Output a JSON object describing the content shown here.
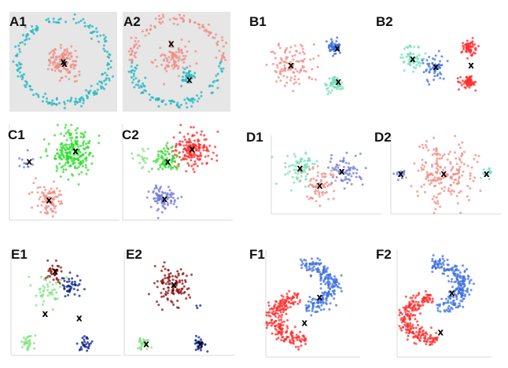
{
  "figure": {
    "colors": {
      "salmon": "#f08a80",
      "cyan": "#19b5bd",
      "blue": "#3c6fe0",
      "mint": "#6fe0b4",
      "green": "#2ede2e",
      "red": "#ff2a2a",
      "lightgreen": "#7fe07f",
      "periwinkle": "#6f78d8",
      "darkred": "#8b0a0a",
      "navy": "#0a1f8a"
    },
    "centroid_marker": "x"
  },
  "chart_data": [
    {
      "id": "A1",
      "label": "A1",
      "type": "scatter",
      "background": "gray",
      "xlim": [
        0,
        100
      ],
      "ylim": [
        0,
        100
      ],
      "clusters": [
        {
          "shape": "ring",
          "color": "cyan",
          "cx": 50,
          "cy": 50,
          "r": 42,
          "n": 190
        },
        {
          "shape": "blob",
          "color": "salmon",
          "cx": 50,
          "cy": 50,
          "r": 14,
          "n": 130
        }
      ],
      "centroids": [
        [
          50,
          50
        ],
        [
          51,
          48
        ]
      ]
    },
    {
      "id": "A2",
      "label": "A2",
      "type": "scatter",
      "background": "gray",
      "xlim": [
        0,
        100
      ],
      "ylim": [
        0,
        100
      ],
      "clusters": [
        {
          "shape": "ring-top",
          "color": "salmon",
          "cx": 50,
          "cy": 50,
          "r": 42,
          "n": 100
        },
        {
          "shape": "ring-bottom",
          "color": "cyan",
          "cx": 50,
          "cy": 50,
          "r": 42,
          "n": 100
        },
        {
          "shape": "blob",
          "color": "salmon",
          "cx": 48,
          "cy": 54,
          "r": 14,
          "n": 90
        },
        {
          "shape": "blob",
          "color": "cyan",
          "cx": 60,
          "cy": 36,
          "r": 7,
          "n": 35
        }
      ],
      "centroids": [
        [
          45,
          68
        ],
        [
          62,
          32
        ]
      ]
    },
    {
      "id": "B1",
      "label": "B1",
      "type": "scatter",
      "xlim": [
        0,
        100
      ],
      "ylim": [
        0,
        100
      ],
      "clusters": [
        {
          "shape": "blob",
          "color": "salmon",
          "cx": 25,
          "cy": 47,
          "r": 20,
          "n": 110
        },
        {
          "shape": "blob",
          "color": "blue",
          "cx": 68,
          "cy": 69,
          "r": 7,
          "n": 60
        },
        {
          "shape": "blob",
          "color": "mint",
          "cx": 68,
          "cy": 24,
          "r": 7,
          "n": 60
        }
      ],
      "centroids": [
        [
          25,
          47
        ],
        [
          71,
          68
        ],
        [
          72,
          27
        ]
      ]
    },
    {
      "id": "B2",
      "label": "B2",
      "type": "scatter",
      "xlim": [
        0,
        100
      ],
      "ylim": [
        0,
        100
      ],
      "clusters": [
        {
          "shape": "blob",
          "color": "mint",
          "cx": 17,
          "cy": 55,
          "r": 11,
          "n": 55
        },
        {
          "shape": "blob",
          "color": "blue",
          "cx": 38,
          "cy": 45,
          "r": 12,
          "n": 55
        },
        {
          "shape": "blob",
          "color": "red",
          "cx": 73,
          "cy": 69,
          "r": 7,
          "n": 60
        },
        {
          "shape": "blob",
          "color": "red",
          "cx": 73,
          "cy": 27,
          "r": 7,
          "n": 60
        }
      ],
      "centroids": [
        [
          17,
          55
        ],
        [
          40,
          45
        ],
        [
          75,
          47
        ]
      ]
    },
    {
      "id": "C1",
      "label": "C1",
      "type": "scatter",
      "xlim": [
        0,
        100
      ],
      "ylim": [
        0,
        100
      ],
      "clusters": [
        {
          "shape": "blob",
          "color": "green",
          "cx": 58,
          "cy": 70,
          "r": 18,
          "n": 240
        },
        {
          "shape": "blob",
          "color": "periwinkle",
          "cx": 16,
          "cy": 60,
          "r": 6,
          "n": 12
        },
        {
          "shape": "blob",
          "color": "salmon",
          "cx": 35,
          "cy": 21,
          "r": 12,
          "n": 90
        }
      ],
      "centroids": [
        [
          60,
          72
        ],
        [
          18,
          61
        ],
        [
          36,
          21
        ]
      ]
    },
    {
      "id": "C2",
      "label": "C2",
      "type": "scatter",
      "xlim": [
        0,
        100
      ],
      "ylim": [
        0,
        100
      ],
      "clusters": [
        {
          "shape": "blob",
          "color": "red",
          "cx": 62,
          "cy": 73,
          "r": 15,
          "n": 170
        },
        {
          "shape": "blob",
          "color": "green",
          "cx": 40,
          "cy": 64,
          "r": 9,
          "n": 80
        },
        {
          "shape": "blob",
          "color": "lightgreen",
          "cx": 18,
          "cy": 62,
          "r": 9,
          "n": 20
        },
        {
          "shape": "blob",
          "color": "periwinkle",
          "cx": 36,
          "cy": 23,
          "r": 12,
          "n": 90
        }
      ],
      "centroids": [
        [
          63,
          74
        ],
        [
          41,
          61
        ],
        [
          38,
          22
        ]
      ]
    },
    {
      "id": "D1",
      "label": "D1",
      "type": "scatter",
      "xlim": [
        0,
        100
      ],
      "ylim": [
        0,
        100
      ],
      "clusters": [
        {
          "shape": "blob",
          "color": "mint",
          "cx": 26,
          "cy": 58,
          "r": 14,
          "n": 70
        },
        {
          "shape": "blob",
          "color": "periwinkle",
          "cx": 65,
          "cy": 55,
          "r": 16,
          "n": 70
        },
        {
          "shape": "blob",
          "color": "salmon",
          "cx": 42,
          "cy": 38,
          "r": 15,
          "n": 75
        }
      ],
      "centroids": [
        [
          26,
          58
        ],
        [
          64,
          54
        ],
        [
          44,
          36
        ]
      ]
    },
    {
      "id": "D2",
      "label": "D2",
      "type": "scatter",
      "xlim": [
        0,
        100
      ],
      "ylim": [
        0,
        100
      ],
      "clusters": [
        {
          "shape": "blob",
          "color": "salmon",
          "cx": 48,
          "cy": 51,
          "r": 24,
          "n": 190
        },
        {
          "shape": "blob",
          "color": "periwinkle",
          "cx": 9,
          "cy": 51,
          "r": 5,
          "n": 15
        },
        {
          "shape": "blob",
          "color": "mint",
          "cx": 87,
          "cy": 51,
          "r": 5,
          "n": 15
        }
      ],
      "centroids": [
        [
          9,
          51
        ],
        [
          48,
          51
        ],
        [
          87,
          51
        ]
      ]
    },
    {
      "id": "E1",
      "label": "E1",
      "type": "scatter",
      "xlim": [
        0,
        100
      ],
      "ylim": [
        0,
        100
      ],
      "clusters": [
        {
          "shape": "blob",
          "color": "darkred",
          "cx": 40,
          "cy": 78,
          "r": 9,
          "n": 35
        },
        {
          "shape": "blob",
          "color": "navy",
          "cx": 55,
          "cy": 67,
          "r": 10,
          "n": 45
        },
        {
          "shape": "blob",
          "color": "lightgreen",
          "cx": 33,
          "cy": 62,
          "r": 11,
          "n": 45
        },
        {
          "shape": "blob",
          "color": "lightgreen",
          "cx": 15,
          "cy": 12,
          "r": 6,
          "n": 30
        },
        {
          "shape": "blob",
          "color": "navy",
          "cx": 68,
          "cy": 11,
          "r": 6,
          "n": 30
        }
      ],
      "centroids": [
        [
          40,
          81
        ],
        [
          31,
          40
        ],
        [
          62,
          36
        ]
      ]
    },
    {
      "id": "E2",
      "label": "E2",
      "type": "scatter",
      "xlim": [
        0,
        100
      ],
      "ylim": [
        0,
        100
      ],
      "clusters": [
        {
          "shape": "blob",
          "color": "darkred",
          "cx": 45,
          "cy": 67,
          "r": 16,
          "n": 110
        },
        {
          "shape": "blob",
          "color": "navy",
          "cx": 67,
          "cy": 47,
          "r": 3,
          "n": 3
        },
        {
          "shape": "blob",
          "color": "lightgreen",
          "cx": 18,
          "cy": 12,
          "r": 6,
          "n": 30
        },
        {
          "shape": "blob",
          "color": "navy",
          "cx": 68,
          "cy": 11,
          "r": 6,
          "n": 30
        }
      ],
      "centroids": [
        [
          45,
          68
        ],
        [
          20,
          11
        ],
        [
          69,
          11
        ]
      ]
    },
    {
      "id": "F1",
      "label": "F1",
      "type": "scatter",
      "xlim": [
        0,
        100
      ],
      "ylim": [
        0,
        100
      ],
      "clusters": [
        {
          "shape": "arc",
          "color": "blue",
          "cx": 37,
          "cy": 66,
          "r": 33,
          "a0": -80,
          "a1": 90,
          "n": 230
        },
        {
          "shape": "arc",
          "color": "red",
          "cx": 43,
          "cy": 36,
          "r": 33,
          "a0": 100,
          "a1": 270,
          "n": 230
        }
      ],
      "centroids": [
        [
          57,
          56
        ],
        [
          41,
          32
        ]
      ]
    },
    {
      "id": "F2",
      "label": "F2",
      "type": "scatter",
      "xlim": [
        0,
        100
      ],
      "ylim": [
        0,
        100
      ],
      "clusters": [
        {
          "shape": "arc",
          "color": "blue",
          "cx": 37,
          "cy": 66,
          "r": 33,
          "a0": -80,
          "a1": 90,
          "n": 230
        },
        {
          "shape": "arc",
          "color": "red",
          "cx": 43,
          "cy": 36,
          "r": 33,
          "a0": 100,
          "a1": 270,
          "n": 230
        }
      ],
      "centroids": [
        [
          58,
          60
        ],
        [
          46,
          23
        ]
      ]
    }
  ]
}
